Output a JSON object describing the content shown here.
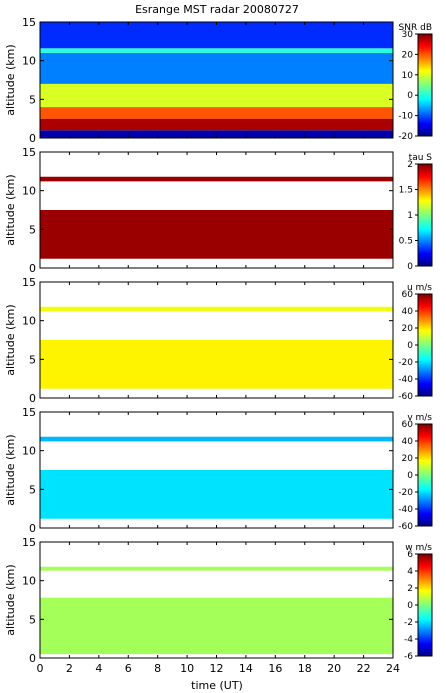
{
  "chart_data": [
    {
      "type": "heatmap",
      "title": "Esrange MST radar 20080727",
      "ylabel": "altitude (km)",
      "xlim": [
        0,
        24
      ],
      "ylim": [
        0,
        15
      ],
      "yticks": [
        0,
        5,
        10,
        15
      ],
      "colorbar": {
        "label": "SNR dB",
        "range": [
          -20,
          30
        ],
        "ticks": [
          30,
          20,
          10,
          0,
          -10,
          -20
        ]
      },
      "description_layers": [
        {
          "y": [
            0,
            1
          ],
          "value": -18
        },
        {
          "y": [
            1,
            2.5
          ],
          "value": 28
        },
        {
          "y": [
            2.5,
            4
          ],
          "value": 20
        },
        {
          "y": [
            4,
            7
          ],
          "value": 10
        },
        {
          "y": [
            7,
            11
          ],
          "value": -8
        },
        {
          "y": [
            11,
            11.6
          ],
          "value": 0
        },
        {
          "y": [
            11.6,
            15
          ],
          "value": -12
        }
      ]
    },
    {
      "type": "heatmap",
      "ylabel": "altitude (km)",
      "xlim": [
        0,
        24
      ],
      "ylim": [
        0,
        15
      ],
      "yticks": [
        0,
        5,
        10,
        15
      ],
      "colorbar": {
        "label": "tau S",
        "range": [
          0,
          2
        ],
        "ticks": [
          2,
          1.5,
          1,
          0.5,
          0
        ]
      },
      "description_layers": [
        {
          "y": [
            1.2,
            7.5
          ],
          "value": 1.95
        },
        {
          "y": [
            11.2,
            11.8
          ],
          "value": 1.95
        }
      ]
    },
    {
      "type": "heatmap",
      "ylabel": "altitude (km)",
      "xlim": [
        0,
        24
      ],
      "ylim": [
        0,
        15
      ],
      "yticks": [
        0,
        5,
        10,
        15
      ],
      "colorbar": {
        "label": "u m/s",
        "range": [
          -60,
          60
        ],
        "ticks": [
          60,
          40,
          20,
          0,
          -20,
          -40,
          -60
        ]
      },
      "description_layers": [
        {
          "y": [
            1.2,
            7.5
          ],
          "value": 18
        },
        {
          "y": [
            11.2,
            11.8
          ],
          "value": 15
        }
      ]
    },
    {
      "type": "heatmap",
      "ylabel": "altitude (km)",
      "xlim": [
        0,
        24
      ],
      "ylim": [
        0,
        15
      ],
      "yticks": [
        0,
        5,
        10,
        15
      ],
      "colorbar": {
        "label": "v m/s",
        "range": [
          -60,
          60
        ],
        "ticks": [
          60,
          40,
          20,
          0,
          -20,
          -40,
          -60
        ]
      },
      "description_layers": [
        {
          "y": [
            1.2,
            7.5
          ],
          "value": -20
        },
        {
          "y": [
            11.2,
            11.8
          ],
          "value": -25
        }
      ]
    },
    {
      "type": "heatmap",
      "ylabel": "altitude (km)",
      "xlabel": "time (UT)",
      "xlim": [
        0,
        24
      ],
      "ylim": [
        0,
        15
      ],
      "yticks": [
        0,
        5,
        10,
        15
      ],
      "xticks": [
        0,
        2,
        4,
        6,
        8,
        10,
        12,
        14,
        16,
        18,
        20,
        22,
        24
      ],
      "colorbar": {
        "label": "w m/s",
        "range": [
          -6,
          6
        ],
        "ticks": [
          6,
          4,
          2,
          0,
          -2,
          -4,
          -6
        ]
      },
      "description_layers": [
        {
          "y": [
            0.5,
            7.8
          ],
          "value": 0.5
        },
        {
          "y": [
            11.3,
            11.8
          ],
          "value": 0.5
        }
      ]
    }
  ]
}
